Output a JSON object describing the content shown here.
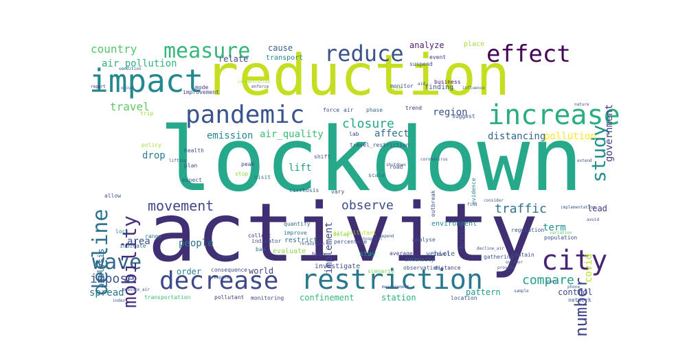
{
  "words": [
    {
      "text": "lockdown",
      "color": "#25a98a"
    },
    {
      "text": "activity",
      "color": "#412f73"
    },
    {
      "text": "reduction",
      "color": "#c5de1f"
    },
    {
      "text": "impact",
      "color": "#23898e"
    },
    {
      "text": "increase",
      "color": "#29af7f"
    },
    {
      "text": "reduce",
      "color": "#3b528b"
    },
    {
      "text": "effect",
      "color": "#440154"
    },
    {
      "text": "pandemic",
      "color": "#3a548c"
    },
    {
      "text": "measure",
      "color": "#35b779"
    },
    {
      "text": "restriction",
      "color": "#2a788e"
    },
    {
      "text": "decrease",
      "color": "#3e4989"
    },
    {
      "text": "city",
      "color": "#482475"
    },
    {
      "text": "wave",
      "color": "#31688e"
    },
    {
      "text": "movement",
      "color": "#3f4788"
    },
    {
      "text": "mobility",
      "color": "#472c7a"
    },
    {
      "text": "decline",
      "color": "#2c728e"
    },
    {
      "text": "study",
      "color": "#21918c"
    },
    {
      "text": "number",
      "color": "#414487"
    },
    {
      "text": "closure",
      "color": "#22a884"
    },
    {
      "text": "observe",
      "color": "#3d4d8a"
    },
    {
      "text": "traffic",
      "color": "#2d708e"
    },
    {
      "text": "compare",
      "color": "#1fa088"
    },
    {
      "text": "country",
      "color": "#52c569"
    },
    {
      "text": "travel",
      "color": "#5ec962"
    },
    {
      "text": "impose",
      "color": "#39558c"
    },
    {
      "text": "government",
      "color": "#443983"
    },
    {
      "text": "air_quality",
      "color": "#3aba76"
    },
    {
      "text": "emission",
      "color": "#238a8d"
    },
    {
      "text": "distancing",
      "color": "#33628d"
    },
    {
      "text": "pollution",
      "color": "#fde725"
    },
    {
      "text": "affect",
      "color": "#2e6e8e"
    },
    {
      "text": "region",
      "color": "#3b518b"
    },
    {
      "text": "drop",
      "color": "#287c8e"
    },
    {
      "text": "lift",
      "color": "#1f9e89"
    },
    {
      "text": "implement",
      "color": "#3e4a89"
    },
    {
      "text": "air_pollution",
      "color": "#2db27d"
    },
    {
      "text": "relate",
      "color": "#404688"
    },
    {
      "text": "cause",
      "color": "#34608d"
    },
    {
      "text": "analyze",
      "color": "#481b6d"
    },
    {
      "text": "transport",
      "color": "#25848e"
    },
    {
      "text": "people",
      "color": "#2e6f8e"
    },
    {
      "text": "area",
      "color": "#3c508b"
    },
    {
      "text": "covid",
      "color": "#b5de2b"
    },
    {
      "text": "term",
      "color": "#20928c"
    },
    {
      "text": "lead",
      "color": "#453882"
    },
    {
      "text": "order",
      "color": "#277f8e"
    },
    {
      "text": "world",
      "color": "#433e85"
    },
    {
      "text": "spread",
      "color": "#2a778e"
    },
    {
      "text": "pattern",
      "color": "#1e9b8a"
    },
    {
      "text": "control",
      "color": "#3f4889"
    },
    {
      "text": "station",
      "color": "#2ab07f"
    },
    {
      "text": "confinement",
      "color": "#35b779"
    },
    {
      "text": "analysis",
      "color": "#31678e"
    },
    {
      "text": "restrict",
      "color": "#2c718e"
    },
    {
      "text": "evaluate",
      "color": "#89d548"
    },
    {
      "text": "investigate",
      "color": "#3d4e8a"
    },
    {
      "text": "environment",
      "color": "#26818e"
    },
    {
      "text": "vehicle",
      "color": "#32658e"
    },
    {
      "text": "stay",
      "color": "#20a386"
    },
    {
      "text": "place",
      "color": "#a2da37"
    },
    {
      "text": "event",
      "color": "#46307e"
    },
    {
      "text": "finding",
      "color": "#3b528b"
    },
    {
      "text": "improvement",
      "color": "#404387"
    },
    {
      "text": "trend",
      "color": "#472a7a"
    },
    {
      "text": "suggest",
      "color": "#3e4c8a"
    },
    {
      "text": "phase",
      "color": "#2f6c8e"
    },
    {
      "text": "policy",
      "color": "#a5db36"
    },
    {
      "text": "expect",
      "color": "#3b528b"
    },
    {
      "text": "delay",
      "color": "#75d054"
    },
    {
      "text": "outbreak",
      "color": "#3e4a89"
    },
    {
      "text": "distance",
      "color": "#453781"
    },
    {
      "text": "location",
      "color": "#3b528b"
    },
    {
      "text": "transportation",
      "color": "#3aba76"
    },
    {
      "text": "pollutant",
      "color": "#443a83"
    },
    {
      "text": "indicate",
      "color": "#2c728e"
    },
    {
      "text": "range",
      "color": "#2d708e"
    },
    {
      "text": "health",
      "color": "#3d4e8a"
    },
    {
      "text": "business",
      "color": "#481467"
    },
    {
      "text": "level",
      "color": "#423f85"
    },
    {
      "text": "population",
      "color": "#3e4989"
    },
    {
      "text": "scenario",
      "color": "#7ad151"
    },
    {
      "text": "network",
      "color": "#38598c"
    },
    {
      "text": "monitoring",
      "color": "#414487"
    },
    {
      "text": "consequence",
      "color": "#3d4d8a"
    },
    {
      "text": "evidence",
      "color": "#277f8e"
    },
    {
      "text": "road",
      "color": "#3b528b"
    },
    {
      "text": "scale",
      "color": "#2e6e8e"
    },
    {
      "text": "peak",
      "color": "#433e85"
    },
    {
      "text": "plan",
      "color": "#404688"
    },
    {
      "text": "lock",
      "color": "#21918c"
    },
    {
      "text": "shift",
      "color": "#3b528b"
    },
    {
      "text": "analyse",
      "color": "#38588c"
    },
    {
      "text": "base",
      "color": "#3f4889"
    },
    {
      "text": "ban",
      "color": "#2a768e"
    },
    {
      "text": "stop",
      "color": "#8bd646"
    },
    {
      "text": "lab",
      "color": "#414287"
    },
    {
      "text": "air",
      "color": "#3b528b"
    },
    {
      "text": "rise",
      "color": "#bddf26"
    },
    {
      "text": "mode",
      "color": "#46337f"
    },
    {
      "text": "trip",
      "color": "#9bd93c"
    },
    {
      "text": "collect",
      "color": "#472d7b"
    },
    {
      "text": "air_pollutant",
      "color": "#b8de29"
    },
    {
      "text": "percentage",
      "color": "#3b528b"
    },
    {
      "text": "quantify",
      "color": "#32658e"
    },
    {
      "text": "improve",
      "color": "#2a788e"
    },
    {
      "text": "regulation",
      "color": "#39568c"
    },
    {
      "text": "contain",
      "color": "#3e4a89"
    },
    {
      "text": "gathering",
      "color": "#3b528b"
    },
    {
      "text": "average",
      "color": "#404387"
    },
    {
      "text": "observation",
      "color": "#3a548c"
    },
    {
      "text": "intensity",
      "color": "#2d708e"
    },
    {
      "text": "force",
      "color": "#3c4f8a"
    },
    {
      "text": "condition",
      "color": "#3b528b"
    },
    {
      "text": "enforce",
      "color": "#3e4989"
    },
    {
      "text": "travel_restriction",
      "color": "#3b528b"
    },
    {
      "text": "report",
      "color": "#482475"
    },
    {
      "text": "monitor",
      "color": "#3b528b"
    },
    {
      "text": "concentration",
      "color": "#a0da39"
    },
    {
      "text": "response",
      "color": "#3b528b"
    },
    {
      "text": "suspend",
      "color": "#3b528b"
    },
    {
      "text": "duration",
      "color": "#404688"
    },
    {
      "text": "cirrhosis",
      "color": "#39568c"
    },
    {
      "text": "visit",
      "color": "#2c728e"
    },
    {
      "text": "variation",
      "color": "#5ec962"
    },
    {
      "text": "index",
      "color": "#3b528b"
    },
    {
      "text": "pass",
      "color": "#3d4d8a"
    },
    {
      "text": "indicator",
      "color": "#3b528b"
    },
    {
      "text": "coronavirus",
      "color": "#3b528b"
    },
    {
      "text": "shutdown",
      "color": "#3b528b"
    },
    {
      "text": "influence",
      "color": "#3b528b"
    },
    {
      "text": "vary",
      "color": "#3b528b"
    },
    {
      "text": "aid",
      "color": "#3b528b"
    },
    {
      "text": "outdoor",
      "color": "#3b528b"
    },
    {
      "text": "decline_air",
      "color": "#3b528b"
    },
    {
      "text": "implementation",
      "color": "#3b528b"
    },
    {
      "text": "avoid",
      "color": "#3b528b"
    },
    {
      "text": "measure_air",
      "color": "#3b528b"
    },
    {
      "text": "disease",
      "color": "#3b528b"
    },
    {
      "text": "extend",
      "color": "#3b528b"
    },
    {
      "text": "allow",
      "color": "#3b528b"
    },
    {
      "text": "lifting",
      "color": "#3b528b"
    },
    {
      "text": "relaxation",
      "color": "#3b528b"
    },
    {
      "text": "hospital",
      "color": "#3b528b"
    },
    {
      "text": "depend",
      "color": "#3b528b"
    },
    {
      "text": "provide",
      "color": "#3b528b"
    },
    {
      "text": "nature",
      "color": "#3b528b"
    },
    {
      "text": "consider",
      "color": "#3b528b"
    },
    {
      "text": "phone",
      "color": "#3b528b"
    },
    {
      "text": "find",
      "color": "#3b528b"
    },
    {
      "text": "measurement",
      "color": "#3b528b"
    },
    {
      "text": "sample",
      "color": "#3b528b"
    },
    {
      "text": "occur",
      "color": "#3b528b"
    },
    {
      "text": "case",
      "color": "#3b528b"
    },
    {
      "text": "use",
      "color": "#3b528b"
    }
  ]
}
